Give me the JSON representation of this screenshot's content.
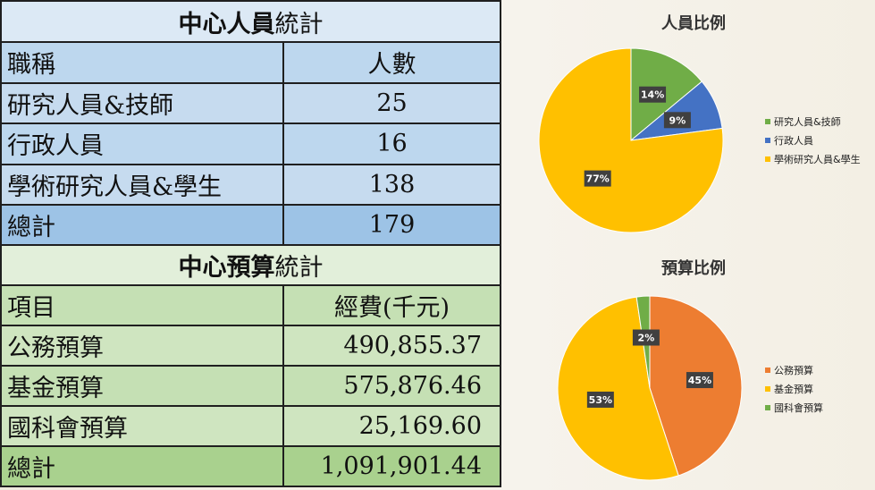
{
  "staff_table": {
    "title_bold": "中心人員",
    "title_rest": "統計",
    "header": [
      "職稱",
      "人數"
    ],
    "rows": [
      [
        "研究人員&技師",
        "25"
      ],
      [
        "行政人員",
        "16"
      ],
      [
        "學術研究人員&學生",
        "138"
      ]
    ],
    "total": [
      "總計",
      "179"
    ]
  },
  "budget_table": {
    "title_bold": "中心預算",
    "title_rest": "統計",
    "header": [
      "項目",
      "經費(千元)"
    ],
    "rows": [
      [
        "公務預算",
        "490,855.37"
      ],
      [
        "基金預算",
        "575,876.46"
      ],
      [
        "國科會預算",
        "25,169.60"
      ]
    ],
    "total": [
      "總計",
      "1,091,901.44"
    ]
  },
  "chart_data": [
    {
      "type": "pie",
      "title": "人員比例",
      "categories": [
        "研究人員&技師",
        "行政人員",
        "學術研究人員&學生"
      ],
      "values": [
        25,
        16,
        138
      ],
      "data_labels": [
        "14%",
        "9%",
        "77%"
      ],
      "colors": [
        "#70ad47",
        "#4472c4",
        "#ffc000"
      ],
      "legend_position": "right"
    },
    {
      "type": "pie",
      "title": "預算比例",
      "categories": [
        "公務預算",
        "基金預算",
        "國科會預算"
      ],
      "values": [
        490855.37,
        575876.46,
        25169.6
      ],
      "data_labels": [
        "45%",
        "53%",
        "2%"
      ],
      "colors": [
        "#ed7d31",
        "#ffc000",
        "#70ad47"
      ],
      "legend_position": "right"
    }
  ]
}
